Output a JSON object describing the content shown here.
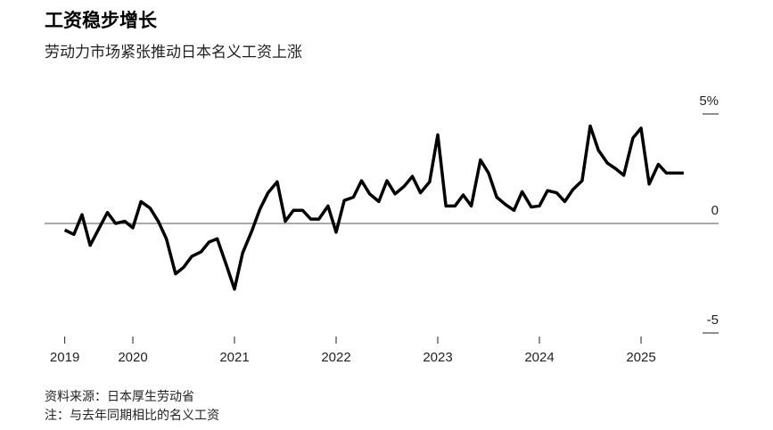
{
  "chart_data": {
    "type": "line",
    "title": "工资稳步增长",
    "subtitle": "劳动力市场紧张推动日本名义工资上涨",
    "source": "资料来源：日本厚生劳动省",
    "note": "注：与去年同期相比的名义工资",
    "x": [
      2019.33,
      2019.42,
      2019.5,
      2019.58,
      2019.67,
      2019.75,
      2019.83,
      2019.92,
      2020,
      2020.08,
      2020.17,
      2020.25,
      2020.33,
      2020.42,
      2020.5,
      2020.58,
      2020.67,
      2020.75,
      2020.83,
      2020.92,
      2021,
      2021.08,
      2021.17,
      2021.25,
      2021.33,
      2021.42,
      2021.5,
      2021.58,
      2021.67,
      2021.75,
      2021.83,
      2021.92,
      2022,
      2022.08,
      2022.17,
      2022.25,
      2022.33,
      2022.42,
      2022.5,
      2022.58,
      2022.67,
      2022.75,
      2022.83,
      2022.92,
      2023,
      2023.08,
      2023.17,
      2023.25,
      2023.33,
      2023.42,
      2023.5,
      2023.58,
      2023.67,
      2023.75,
      2023.83,
      2023.92,
      2024,
      2024.08,
      2024.17,
      2024.25,
      2024.33,
      2024.42,
      2024.5,
      2024.58,
      2024.67,
      2024.75,
      2024.83,
      2024.92,
      2025,
      2025.08,
      2025.17,
      2025.25,
      2025.33,
      2025.42
    ],
    "series": [
      {
        "name": "名义工资",
        "color": "#000000",
        "values": [
          -0.3,
          -0.5,
          0.4,
          -1.0,
          -0.2,
          0.5,
          0,
          0.1,
          -0.2,
          1.0,
          0.7,
          0.1,
          -0.7,
          -2.3,
          -2.0,
          -1.5,
          -1.3,
          -0.85,
          -0.7,
          -1.9,
          -3.0,
          -1.35,
          -0.35,
          0.65,
          1.4,
          1.9,
          0.1,
          0.6,
          0.6,
          0.2,
          0.2,
          0.8,
          -0.4,
          1.05,
          1.2,
          1.95,
          1.35,
          1.0,
          1.95,
          1.35,
          1.7,
          2.15,
          1.4,
          1.9,
          4.05,
          0.8,
          0.8,
          1.3,
          0.8,
          2.9,
          2.3,
          1.2,
          0.85,
          0.6,
          1.45,
          0.75,
          0.8,
          1.5,
          1.4,
          1.0,
          1.55,
          1.95,
          4.45,
          3.35,
          2.75,
          2.5,
          2.2,
          3.9,
          4.35,
          1.8,
          2.7,
          2.3,
          2.3,
          2.3
        ]
      }
    ],
    "xlim": [
      2019,
      2026
    ],
    "xticks": [
      {
        "value": 2019.33,
        "label": "2019"
      },
      2020,
      2021,
      2022,
      2023,
      2024,
      2025
    ],
    "ylim": [
      -5,
      5
    ],
    "yticks": [
      {
        "value": 5,
        "label": "5%"
      },
      0,
      -5
    ]
  }
}
